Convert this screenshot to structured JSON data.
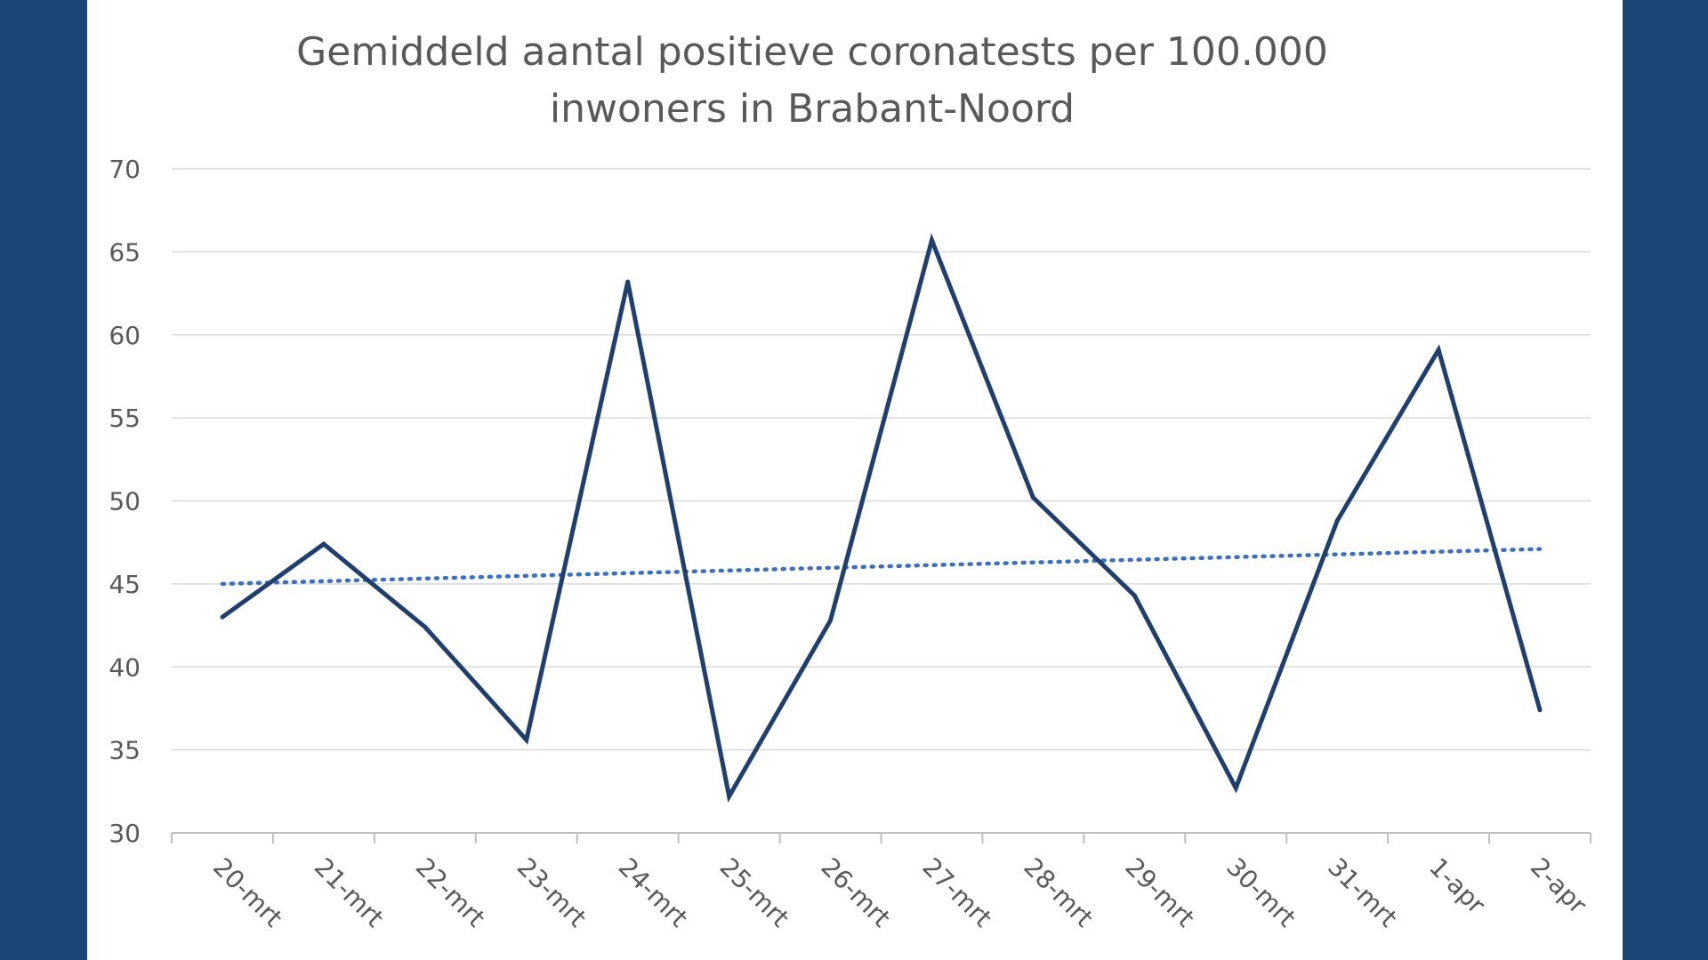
{
  "chart_data": {
    "type": "line",
    "title_lines": [
      "Gemiddeld aantal positieve coronatests per 100.000",
      "inwoners in Brabant-Noord"
    ],
    "categories": [
      "20-mrt",
      "21-mrt",
      "22-mrt",
      "23-mrt",
      "24-mrt",
      "25-mrt",
      "26-mrt",
      "27-mrt",
      "28-mrt",
      "29-mrt",
      "30-mrt",
      "31-mrt",
      "1-apr",
      "2-apr"
    ],
    "series": [
      {
        "values": [
          43.0,
          47.4,
          42.4,
          35.6,
          63.2,
          32.2,
          42.8,
          65.7,
          50.2,
          44.3,
          32.7,
          48.8,
          59.1,
          37.4
        ],
        "color": "#1f3f6e",
        "style": "solid"
      }
    ],
    "trendline": {
      "type": "linear",
      "start": 45.0,
      "end": 47.1,
      "color": "#3a6fc4",
      "style": "dotted"
    },
    "ylim": [
      30,
      70
    ],
    "yticks": [
      30,
      35,
      40,
      45,
      50,
      55,
      60,
      65,
      70
    ],
    "xlabel": "",
    "ylabel": "",
    "grid": true,
    "legend": "none"
  },
  "colors": {
    "background": "#1b4776",
    "panel": "#ffffff",
    "series": "#1f3f6e",
    "trend": "#3a6fc4",
    "text": "#595959"
  }
}
